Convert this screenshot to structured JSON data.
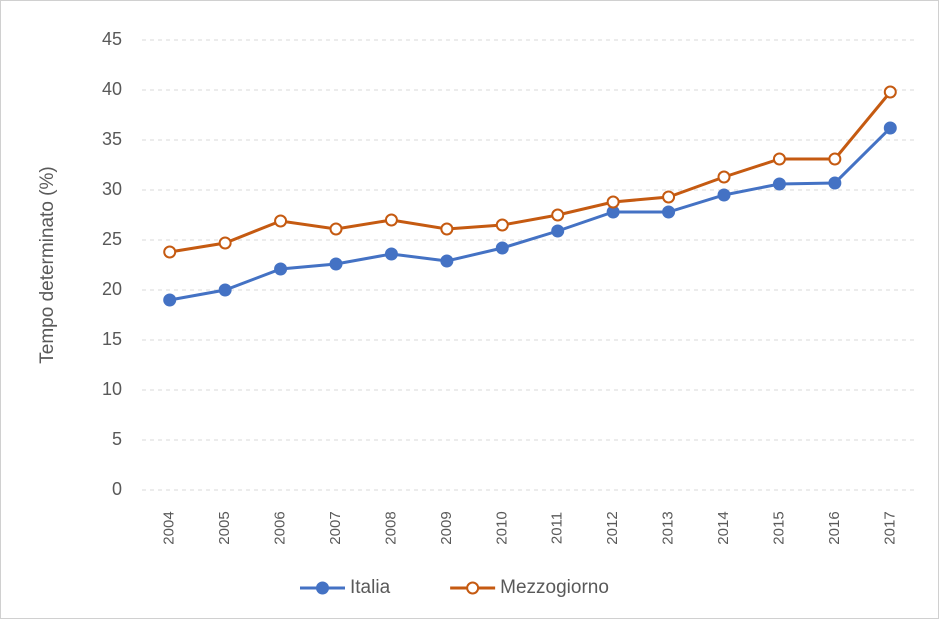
{
  "chart_data": {
    "type": "line",
    "y_label": "Tempo determinato (%)",
    "categories": [
      "2004",
      "2005",
      "2006",
      "2007",
      "2008",
      "2009",
      "2010",
      "2011",
      "2012",
      "2013",
      "2014",
      "2015",
      "2016",
      "2017"
    ],
    "series": [
      {
        "name": "Italia",
        "color": "#4472c4",
        "marker_fill": "#4472c4",
        "values": [
          19,
          20,
          22.1,
          22.6,
          23.6,
          22.9,
          24.2,
          25.9,
          27.8,
          27.8,
          29.5,
          30.6,
          30.7,
          36.2
        ]
      },
      {
        "name": "Mezzogiorno",
        "color": "#c55a11",
        "marker_fill": "#ffffff",
        "values": [
          23.8,
          24.7,
          26.9,
          26.1,
          27.0,
          26.1,
          26.5,
          27.5,
          28.8,
          29.3,
          31.3,
          33.1,
          33.1,
          39.8
        ]
      }
    ],
    "ylim": [
      0,
      45
    ],
    "yticks": [
      0,
      5,
      10,
      15,
      20,
      25,
      30,
      35,
      40,
      45
    ],
    "grid": true,
    "legend": "bottom"
  }
}
